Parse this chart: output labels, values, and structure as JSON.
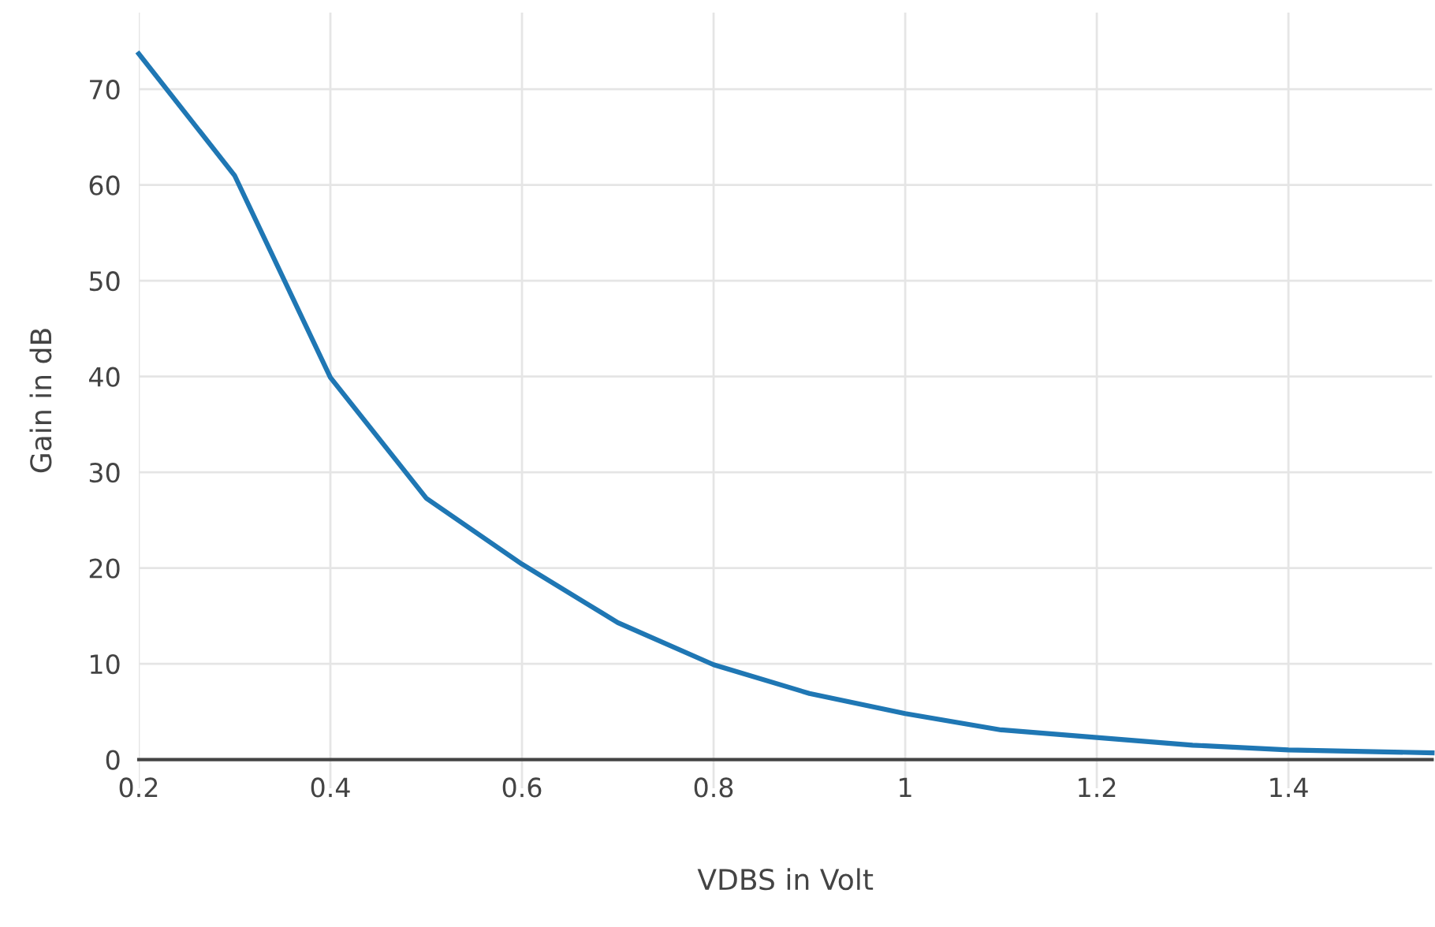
{
  "chart_data": {
    "type": "line",
    "xlabel": "VDBS in Volt",
    "ylabel": "Gain in dB",
    "x": [
      0.2,
      0.3,
      0.4,
      0.5,
      0.6,
      0.7,
      0.8,
      0.9,
      1.0,
      1.1,
      1.2,
      1.3,
      1.4,
      1.5,
      1.55
    ],
    "series": [
      {
        "color": "#1f77b4",
        "values": [
          73.7,
          61,
          39.9,
          27.3,
          20.4,
          14.3,
          9.9,
          6.9,
          4.8,
          3.1,
          2.3,
          1.5,
          1.0,
          0.8,
          0.7
        ]
      }
    ],
    "xlim": [
      0.2,
      1.55
    ],
    "xticks": [
      0.2,
      0.4,
      0.6,
      0.8,
      1,
      1.2,
      1.4
    ],
    "ylim": [
      -3,
      78
    ],
    "yticks": [
      0,
      10,
      20,
      30,
      40,
      50,
      60,
      70
    ],
    "grid": true,
    "legend": false,
    "marker": "none",
    "line_style": "solid"
  }
}
